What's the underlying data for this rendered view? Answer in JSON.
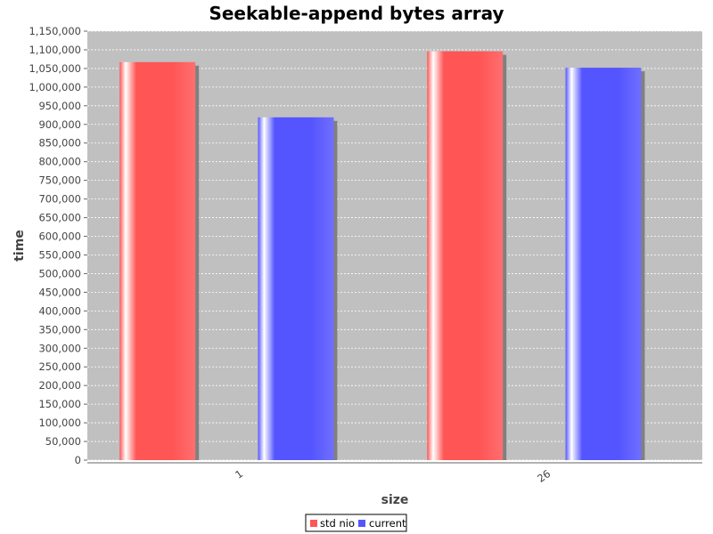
{
  "chart_data": {
    "type": "bar",
    "title": "Seekable-append bytes array",
    "xlabel": "size",
    "ylabel": "time",
    "categories": [
      "1",
      "26"
    ],
    "series": [
      {
        "name": "std nio",
        "color": "#ff5555",
        "values": [
          1067000,
          1096000
        ]
      },
      {
        "name": "current",
        "color": "#5555ff",
        "values": [
          919000,
          1052000
        ]
      }
    ],
    "ylim": [
      0,
      1150000
    ],
    "ytick_step": 50000,
    "grid": true,
    "legend_position": "bottom-center",
    "plot_background": "#c0c0c0",
    "gridline_color": "#ffffff"
  }
}
